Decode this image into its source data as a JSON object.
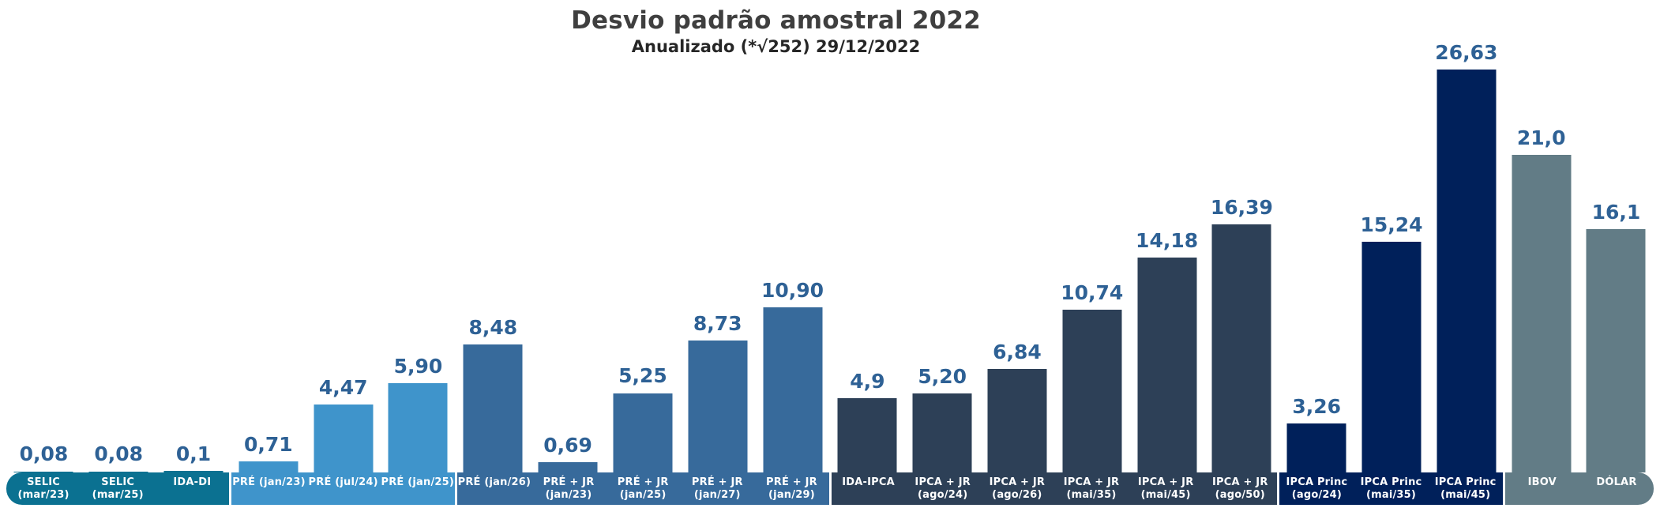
{
  "chart_data": {
    "type": "bar",
    "title": "Desvio padrão amostral 2022",
    "subtitle": "Anualizado (*√252)  29/12/2022",
    "xlabel": "",
    "ylabel": "",
    "ylim": [
      0,
      26.63
    ],
    "grid": false,
    "legend": "none (colors encode instrument group, shown as colored axis bands)",
    "decimal_separator": ",",
    "groups": [
      {
        "name": "selic-cdi",
        "color": "#0B7191",
        "bars": [
          {
            "label": "SELIC (mar/23)",
            "label_lines": [
              "SELIC",
              "(mar/23)"
            ],
            "value": 0.08,
            "value_label": "0,08"
          },
          {
            "label": "SELIC (mar/25)",
            "label_lines": [
              "SELIC",
              "(mar/25)"
            ],
            "value": 0.08,
            "value_label": "0,08"
          },
          {
            "label": "IDA-DI",
            "label_lines": [
              "IDA-DI"
            ],
            "value": 0.1,
            "value_label": "0,1"
          }
        ]
      },
      {
        "name": "pre",
        "color": "#3F94CB",
        "bars": [
          {
            "label": "PRÉ (jan/23)",
            "label_lines": [
              "PRÉ (jan/23)"
            ],
            "value": 0.71,
            "value_label": "0,71"
          },
          {
            "label": "PRÉ (jul/24)",
            "label_lines": [
              "PRÉ (jul/24)"
            ],
            "value": 4.47,
            "value_label": "4,47"
          },
          {
            "label": "PRÉ (jan/25)",
            "label_lines": [
              "PRÉ (jan/25)"
            ],
            "value": 5.9,
            "value_label": "5,90"
          }
        ]
      },
      {
        "name": "pre-jr",
        "color": "#376A9B",
        "bars": [
          {
            "label": "PRÉ (jan/26)",
            "label_lines": [
              "PRÉ (jan/26)"
            ],
            "value": 8.48,
            "value_label": "8,48"
          },
          {
            "label": "PRÉ + JR (jan/23)",
            "label_lines": [
              "PRÉ + JR",
              "(jan/23)"
            ],
            "value": 0.69,
            "value_label": "0,69"
          },
          {
            "label": "PRÉ + JR (jan/25)",
            "label_lines": [
              "PRÉ + JR",
              "(jan/25)"
            ],
            "value": 5.25,
            "value_label": "5,25"
          },
          {
            "label": "PRÉ + JR (jan/27)",
            "label_lines": [
              "PRÉ + JR",
              "(jan/27)"
            ],
            "value": 8.73,
            "value_label": "8,73"
          },
          {
            "label": "PRÉ + JR (jan/29)",
            "label_lines": [
              "PRÉ + JR",
              "(jan/29)"
            ],
            "value": 10.9,
            "value_label": "10,90"
          }
        ]
      },
      {
        "name": "ipca-jr",
        "color": "#2D4057",
        "bars": [
          {
            "label": "IDA-IPCA",
            "label_lines": [
              "IDA-IPCA"
            ],
            "value": 4.9,
            "value_label": "4,9"
          },
          {
            "label": "IPCA + JR (ago/24)",
            "label_lines": [
              "IPCA + JR",
              "(ago/24)"
            ],
            "value": 5.2,
            "value_label": "5,20"
          },
          {
            "label": "IPCA + JR (ago/26)",
            "label_lines": [
              "IPCA + JR",
              "(ago/26)"
            ],
            "value": 6.84,
            "value_label": "6,84"
          },
          {
            "label": "IPCA + JR (mai/35)",
            "label_lines": [
              "IPCA + JR",
              "(mai/35)"
            ],
            "value": 10.74,
            "value_label": "10,74"
          },
          {
            "label": "IPCA + JR (mai/45)",
            "label_lines": [
              "IPCA + JR",
              "(mai/45)"
            ],
            "value": 14.18,
            "value_label": "14,18"
          },
          {
            "label": "IPCA + JR (ago/50)",
            "label_lines": [
              "IPCA + JR",
              "(ago/50)"
            ],
            "value": 16.39,
            "value_label": "16,39"
          }
        ]
      },
      {
        "name": "ipca-princ",
        "color": "#00205A",
        "bars": [
          {
            "label": "IPCA Princ (ago/24)",
            "label_lines": [
              "IPCA Princ",
              "(ago/24)"
            ],
            "value": 3.26,
            "value_label": "3,26"
          },
          {
            "label": "IPCA Princ (mai/35)",
            "label_lines": [
              "IPCA Princ",
              "(mai/35)"
            ],
            "value": 15.24,
            "value_label": "15,24"
          },
          {
            "label": "IPCA Princ (mai/45)",
            "label_lines": [
              "IPCA Princ",
              "(mai/45)"
            ],
            "value": 26.63,
            "value_label": "26,63"
          }
        ]
      },
      {
        "name": "indices",
        "color": "#627C86",
        "bars": [
          {
            "label": "IBOV",
            "label_lines": [
              "IBOV"
            ],
            "value": 21.0,
            "value_label": "21,0"
          },
          {
            "label": "DÓLAR",
            "label_lines": [
              "DÓLAR"
            ],
            "value": 16.1,
            "value_label": "16,1"
          }
        ]
      }
    ]
  },
  "appearance": {
    "title_color": "#3F3F3F",
    "subtitle_color": "#262626",
    "value_label_color": "#2E6195",
    "axis_label_text_color": "#FFFFFF",
    "background_color": "#FFFFFF"
  }
}
